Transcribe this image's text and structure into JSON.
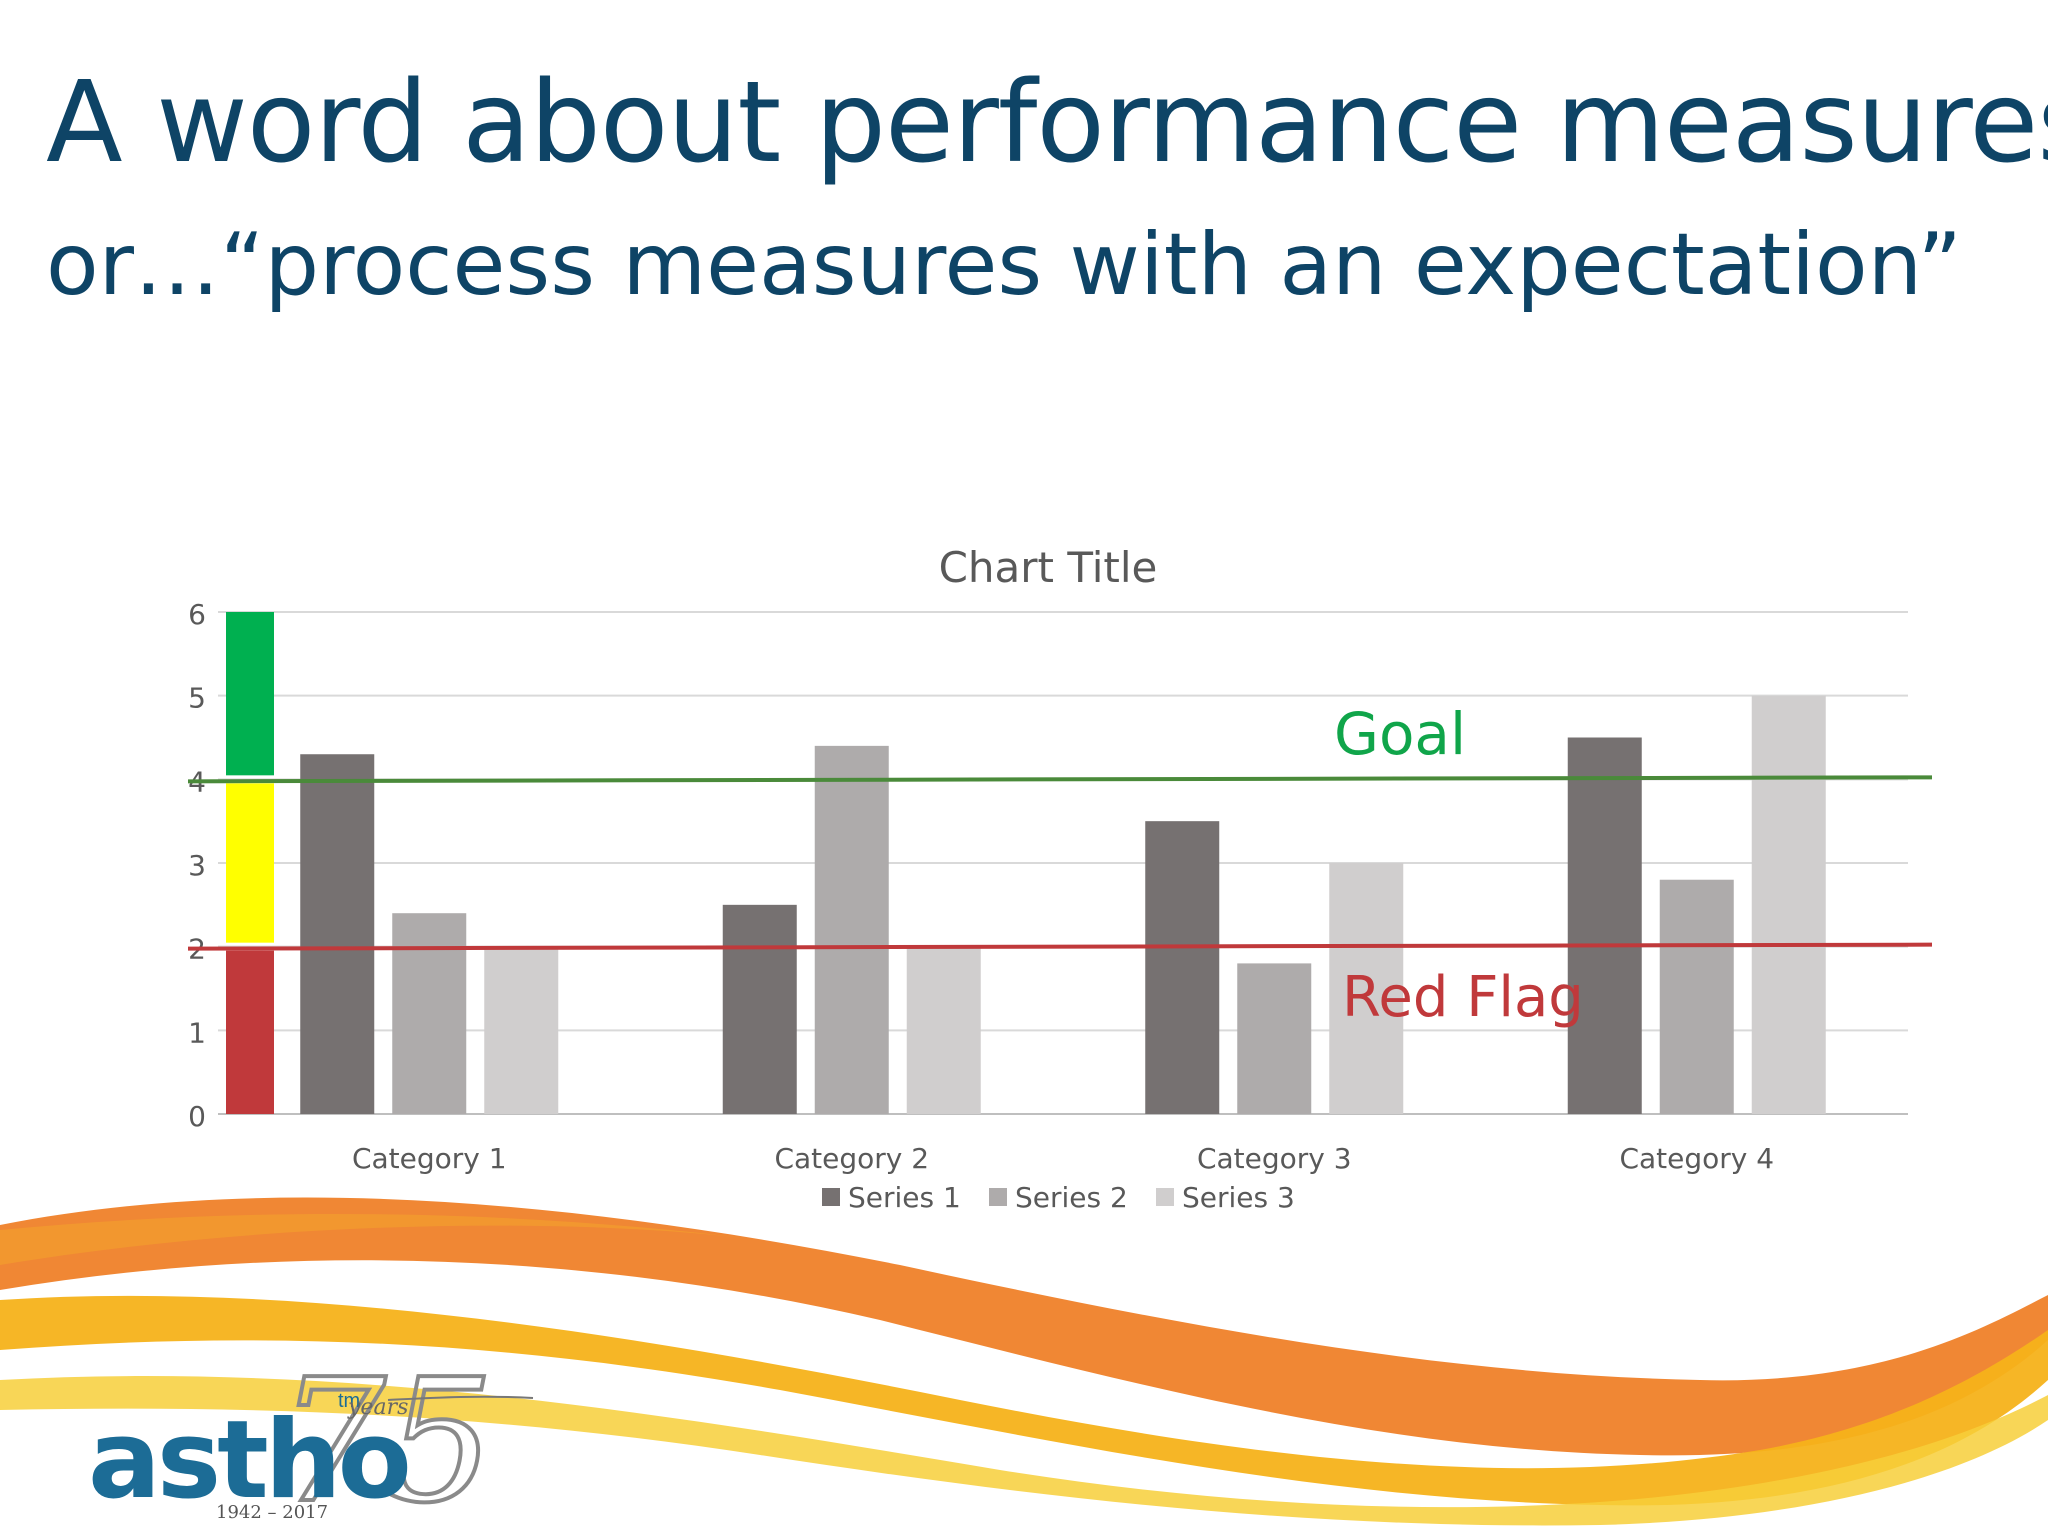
{
  "slide": {
    "title": "A word about performance measures",
    "subtitle": "or…“process measures with an expectation”"
  },
  "chart_data": {
    "type": "bar",
    "title": "Chart Title",
    "categories": [
      "Category 1",
      "Category 2",
      "Category 3",
      "Category 4"
    ],
    "series": [
      {
        "name": "Series 1",
        "values": [
          4.3,
          2.5,
          3.5,
          4.5
        ],
        "color": "#767171"
      },
      {
        "name": "Series 2",
        "values": [
          2.4,
          4.4,
          1.8,
          2.8
        ],
        "color": "#aeabab"
      },
      {
        "name": "Series 3",
        "values": [
          2.0,
          2.0,
          3.0,
          5.0
        ],
        "color": "#d0cece"
      }
    ],
    "ylim": [
      0,
      6
    ],
    "yticks": [
      "0",
      "1",
      "2",
      "3",
      "4",
      "5",
      "6"
    ],
    "grid": true,
    "legend": "bottom",
    "reference_lines": [
      {
        "label": "Goal",
        "value": 4,
        "color": "#4a8a3a",
        "label_color": "#10a54a"
      },
      {
        "label": "Red Flag",
        "value": 2,
        "color": "#c0393b",
        "label_color": "#c0393b"
      }
    ],
    "status_bands": [
      {
        "name": "red",
        "from": 0,
        "to": 2,
        "color": "#c0393b"
      },
      {
        "name": "yellow",
        "from": 2,
        "to": 4,
        "color": "#ffff00"
      },
      {
        "name": "green",
        "from": 4,
        "to": 6,
        "color": "#00b050"
      }
    ]
  },
  "logo": {
    "wordmark": "astho",
    "trademark": "tm",
    "anniversary": "75",
    "script": "years",
    "dates": "1942 – 2017"
  },
  "decor_colors": {
    "orange": "#ee7a1e",
    "gold": "#f5b21a",
    "yellow": "#f7cf3a"
  }
}
